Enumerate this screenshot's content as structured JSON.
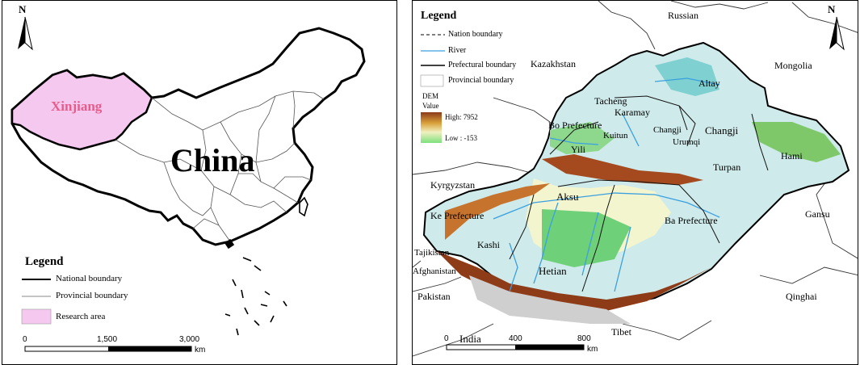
{
  "left_panel": {
    "north": "N",
    "big_label": "China",
    "region_label": "Xinjiang",
    "legend": {
      "title": "Legend",
      "items": [
        {
          "label": "National boundary"
        },
        {
          "label": "Provincial boundary"
        },
        {
          "label": "Research area"
        }
      ]
    },
    "scale": {
      "ticks": [
        "0",
        "1,500",
        "3,000"
      ],
      "unit": "km"
    },
    "colors": {
      "research_area": "#f5c8f0"
    }
  },
  "right_panel": {
    "north": "N",
    "legend": {
      "title": "Legend",
      "items": [
        {
          "label": "Nation boundary"
        },
        {
          "label": "River"
        },
        {
          "label": "Prefectural boundary"
        },
        {
          "label": "Provincial boundary"
        }
      ],
      "dem_title_1": "DEM",
      "dem_title_2": "Value",
      "high": "High: 7952",
      "low": "Low : -153"
    },
    "countries": {
      "russian": "Russian",
      "kazakhstan": "Kazakhstan",
      "mongolia": "Mongolia",
      "kyrgyzstan": "Kyrgyzstan",
      "tajikistan": "Tajikistan",
      "afghanistan": "Afghanistan",
      "pakistan": "Pakistan",
      "india": "India",
      "tibet": "Tibet",
      "qinghai": "Qinghai",
      "gansu": "Gansu"
    },
    "prefectures": {
      "altay": "Altay",
      "tacheng": "Tacheng",
      "karamay": "Karamay",
      "bo": "Bo Prefecture",
      "kuitun": "Kuitun",
      "changji_small": "Changji",
      "urumqi": "Urumqi",
      "changji": "Changji",
      "yili": "Yili",
      "hami": "Hami",
      "turpan": "Turpan",
      "aksu": "Aksu",
      "ke": "Ke Prefecture",
      "ba": "Ba Prefecture",
      "kashi": "Kashi",
      "hetian": "Hetian"
    },
    "scale": {
      "ticks": [
        "0",
        "400",
        "800"
      ],
      "unit": "km"
    },
    "colors": {
      "river": "#3aa0e0",
      "dem_high": "#8b3a1a",
      "dem_low": "#7ee07e"
    }
  }
}
